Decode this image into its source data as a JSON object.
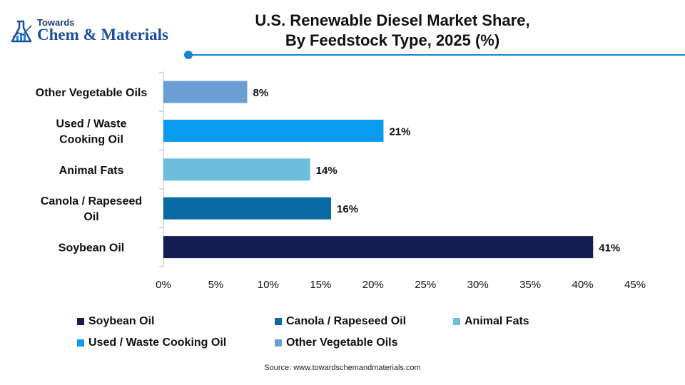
{
  "brand": {
    "towards": "Towards",
    "name": "Chem & Materials"
  },
  "title": {
    "line1": "U.S. Renewable Diesel Market Share,",
    "line2": "By Feedstock Type, 2025 (%)"
  },
  "source": "Source: www.towardschemandmaterials.com",
  "chart_data": {
    "type": "bar",
    "orientation": "horizontal",
    "categories": [
      "Other Vegetable Oils",
      "Used / Waste Cooking Oil",
      "Animal Fats",
      "Canola / Rapeseed Oil",
      "Soybean Oil"
    ],
    "category_label_lines": [
      [
        "Other Vegetable Oils"
      ],
      [
        "Used / Waste",
        "Cooking Oil"
      ],
      [
        "Animal Fats"
      ],
      [
        "Canola / Rapeseed",
        "Oil"
      ],
      [
        "Soybean Oil"
      ]
    ],
    "values": [
      8,
      21,
      14,
      16,
      41
    ],
    "value_labels": [
      "8%",
      "21%",
      "14%",
      "16%",
      "41%"
    ],
    "colors": [
      "#6b9fd4",
      "#0a9bf0",
      "#6bbfdd",
      "#0a6aa3",
      "#141c52"
    ],
    "xlim": [
      0,
      45
    ],
    "x_ticks": [
      0,
      5,
      10,
      15,
      20,
      25,
      30,
      35,
      40,
      45
    ],
    "x_tick_labels": [
      "0%",
      "5%",
      "10%",
      "15%",
      "20%",
      "25%",
      "30%",
      "35%",
      "40%",
      "45%"
    ],
    "grid": false,
    "legend_position": "bottom"
  },
  "legend": {
    "items": [
      {
        "label": "Soybean Oil",
        "color": "#141c52"
      },
      {
        "label": "Canola / Rapeseed Oil",
        "color": "#0a6aa3"
      },
      {
        "label": "Animal Fats",
        "color": "#6bbfdd"
      },
      {
        "label": "Used / Waste Cooking Oil",
        "color": "#0a9bf0"
      },
      {
        "label": "Other Vegetable Oils",
        "color": "#6b9fd4"
      }
    ]
  }
}
